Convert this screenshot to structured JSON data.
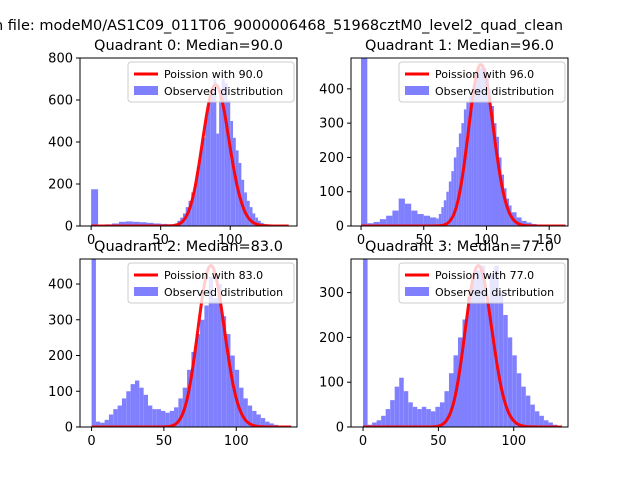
{
  "figure": {
    "suptitle": "n file: modeM0/AS1C09_011T06_9000006468_51968cztM0_level2_quad_clean"
  },
  "colors": {
    "poisson": "#ff0000",
    "observed": "#8080ff",
    "axes": "#000000",
    "background": "#ffffff"
  },
  "chart_data": [
    {
      "type": "bar",
      "title": "Quadrant 0: Median=90.0",
      "xlim": [
        -8,
        148
      ],
      "ylim": [
        0,
        800
      ],
      "xticks": [
        0,
        50,
        100
      ],
      "yticks": [
        0,
        200,
        400,
        600,
        800
      ],
      "xlabel": "",
      "ylabel": "",
      "legend": [
        "Poission with 90.0",
        "Observed distribution"
      ],
      "poisson_mean": 90.0,
      "poisson_range": [
        0,
        142
      ],
      "bins": {
        "x": [
          0,
          5,
          10,
          15,
          20,
          25,
          30,
          35,
          40,
          45,
          50,
          55,
          60,
          62,
          64,
          66,
          68,
          70,
          72,
          74,
          76,
          78,
          80,
          82,
          84,
          86,
          88,
          90,
          92,
          94,
          96,
          98,
          100,
          102,
          104,
          106,
          108,
          110,
          112,
          114,
          116,
          118,
          120,
          122,
          124,
          126,
          128,
          130,
          132,
          134,
          136,
          138,
          140
        ],
        "values": [
          175,
          5,
          8,
          12,
          20,
          22,
          20,
          18,
          15,
          12,
          10,
          8,
          12,
          25,
          40,
          60,
          90,
          120,
          160,
          200,
          280,
          360,
          420,
          520,
          600,
          640,
          700,
          440,
          620,
          700,
          680,
          600,
          500,
          420,
          360,
          300,
          220,
          160,
          120,
          90,
          60,
          40,
          25,
          15,
          10,
          8,
          6,
          5,
          4,
          3,
          2,
          1,
          1
        ]
      }
    },
    {
      "type": "bar",
      "title": "Quadrant 1: Median=96.0",
      "xlim": [
        -8,
        165
      ],
      "ylim": [
        0,
        490
      ],
      "xticks": [
        0,
        50,
        100,
        150
      ],
      "yticks": [
        0,
        100,
        200,
        300,
        400
      ],
      "xlabel": "",
      "ylabel": "",
      "legend": [
        "Poission with 96.0",
        "Observed distribution"
      ],
      "poisson_mean": 96.0,
      "poisson_range": [
        0,
        163
      ],
      "bins": {
        "x": [
          0,
          5,
          10,
          15,
          20,
          25,
          30,
          35,
          40,
          45,
          50,
          55,
          60,
          62,
          64,
          66,
          68,
          70,
          72,
          74,
          76,
          78,
          80,
          82,
          84,
          86,
          88,
          90,
          92,
          94,
          96,
          98,
          100,
          102,
          104,
          106,
          108,
          110,
          112,
          114,
          116,
          118,
          120,
          124,
          128,
          132,
          136,
          140,
          146,
          152,
          158
        ],
        "values": [
          490,
          8,
          12,
          20,
          30,
          45,
          80,
          65,
          45,
          35,
          30,
          25,
          22,
          35,
          55,
          75,
          100,
          130,
          160,
          200,
          230,
          270,
          300,
          340,
          360,
          380,
          400,
          420,
          440,
          460,
          470,
          460,
          430,
          400,
          350,
          300,
          260,
          200,
          150,
          110,
          80,
          60,
          40,
          25,
          15,
          10,
          6,
          4,
          3,
          2,
          1
        ]
      }
    },
    {
      "type": "bar",
      "title": "Quadrant 2: Median=83.0",
      "xlim": [
        -8,
        142
      ],
      "ylim": [
        0,
        470
      ],
      "xticks": [
        0,
        50,
        100
      ],
      "yticks": [
        0,
        100,
        200,
        300,
        400
      ],
      "xlabel": "",
      "ylabel": "",
      "legend": [
        "Poission with 83.0",
        "Observed distribution"
      ],
      "poisson_mean": 83.0,
      "poisson_range": [
        0,
        138
      ],
      "bins": {
        "x": [
          0,
          3,
          6,
          9,
          12,
          15,
          18,
          21,
          24,
          27,
          30,
          33,
          36,
          39,
          42,
          45,
          48,
          51,
          54,
          57,
          60,
          63,
          66,
          69,
          72,
          75,
          78,
          81,
          84,
          87,
          90,
          93,
          96,
          99,
          102,
          105,
          108,
          111,
          114,
          117,
          120,
          123,
          126,
          129,
          132,
          135
        ],
        "values": [
          470,
          15,
          12,
          20,
          35,
          50,
          60,
          80,
          100,
          120,
          130,
          110,
          90,
          60,
          50,
          50,
          45,
          40,
          45,
          55,
          80,
          110,
          160,
          210,
          260,
          300,
          340,
          420,
          360,
          400,
          310,
          260,
          200,
          160,
          110,
          80,
          60,
          45,
          35,
          25,
          15,
          10,
          6,
          3,
          2,
          1
        ]
      }
    },
    {
      "type": "bar",
      "title": "Quadrant 3: Median=77.0",
      "xlim": [
        -8,
        136
      ],
      "ylim": [
        0,
        375
      ],
      "xticks": [
        0,
        50,
        100
      ],
      "yticks": [
        0,
        100,
        200,
        300
      ],
      "xlabel": "",
      "ylabel": "",
      "legend": [
        "Poission with 77.0",
        "Observed distribution"
      ],
      "poisson_mean": 77.0,
      "poisson_range": [
        0,
        132
      ],
      "bins": {
        "x": [
          0,
          3,
          6,
          9,
          12,
          15,
          18,
          21,
          24,
          27,
          30,
          33,
          36,
          39,
          42,
          45,
          48,
          51,
          54,
          57,
          60,
          63,
          66,
          69,
          72,
          75,
          78,
          81,
          84,
          87,
          90,
          93,
          96,
          99,
          102,
          105,
          108,
          111,
          114,
          117,
          120,
          123,
          126,
          129
        ],
        "values": [
          375,
          5,
          10,
          15,
          25,
          40,
          60,
          90,
          110,
          80,
          55,
          45,
          40,
          45,
          40,
          35,
          45,
          55,
          80,
          120,
          160,
          200,
          240,
          290,
          330,
          350,
          360,
          280,
          340,
          360,
          300,
          250,
          200,
          160,
          120,
          90,
          70,
          50,
          35,
          25,
          15,
          10,
          5,
          2
        ]
      }
    }
  ]
}
